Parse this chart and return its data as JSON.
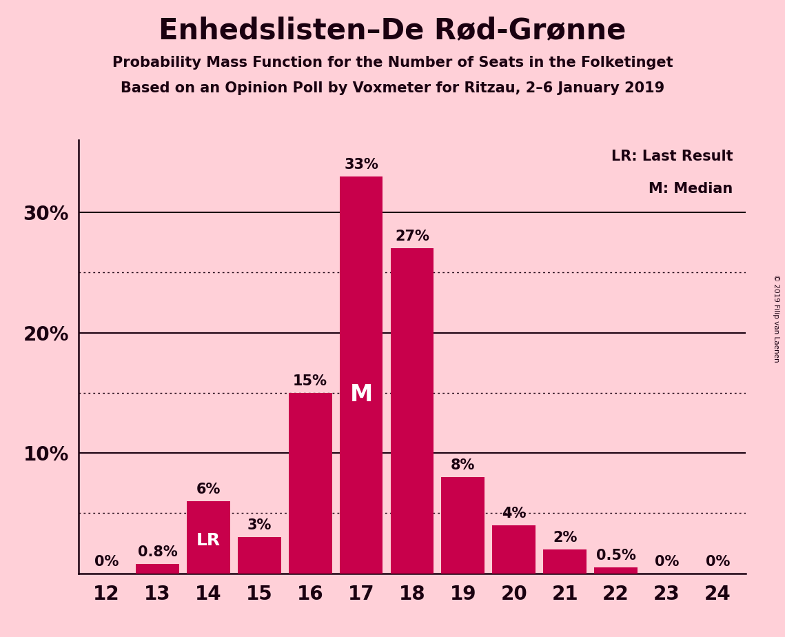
{
  "title": "Enhedslisten–De Rød-Grønne",
  "subtitle1": "Probability Mass Function for the Number of Seats in the Folketinget",
  "subtitle2": "Based on an Opinion Poll by Voxmeter for Ritzau, 2–6 January 2019",
  "copyright": "© 2019 Filip van Laenen",
  "seats": [
    12,
    13,
    14,
    15,
    16,
    17,
    18,
    19,
    20,
    21,
    22,
    23,
    24
  ],
  "probabilities": [
    0.0,
    0.8,
    6.0,
    3.0,
    15.0,
    33.0,
    27.0,
    8.0,
    4.0,
    2.0,
    0.5,
    0.0,
    0.0
  ],
  "bar_color": "#C8004B",
  "background_color": "#FFD0D8",
  "text_color": "#1A0010",
  "lr_seat": 14,
  "m_seat": 17,
  "yticks_solid": [
    10,
    20,
    30
  ],
  "yticks_dotted": [
    5,
    15,
    25
  ],
  "ylim": [
    0,
    36
  ],
  "legend_lr": "LR: Last Result",
  "legend_m": "M: Median",
  "bar_labels": [
    "0%",
    "0.8%",
    "6%",
    "3%",
    "15%",
    "33%",
    "27%",
    "8%",
    "4%",
    "2%",
    "0.5%",
    "0%",
    "0%"
  ]
}
